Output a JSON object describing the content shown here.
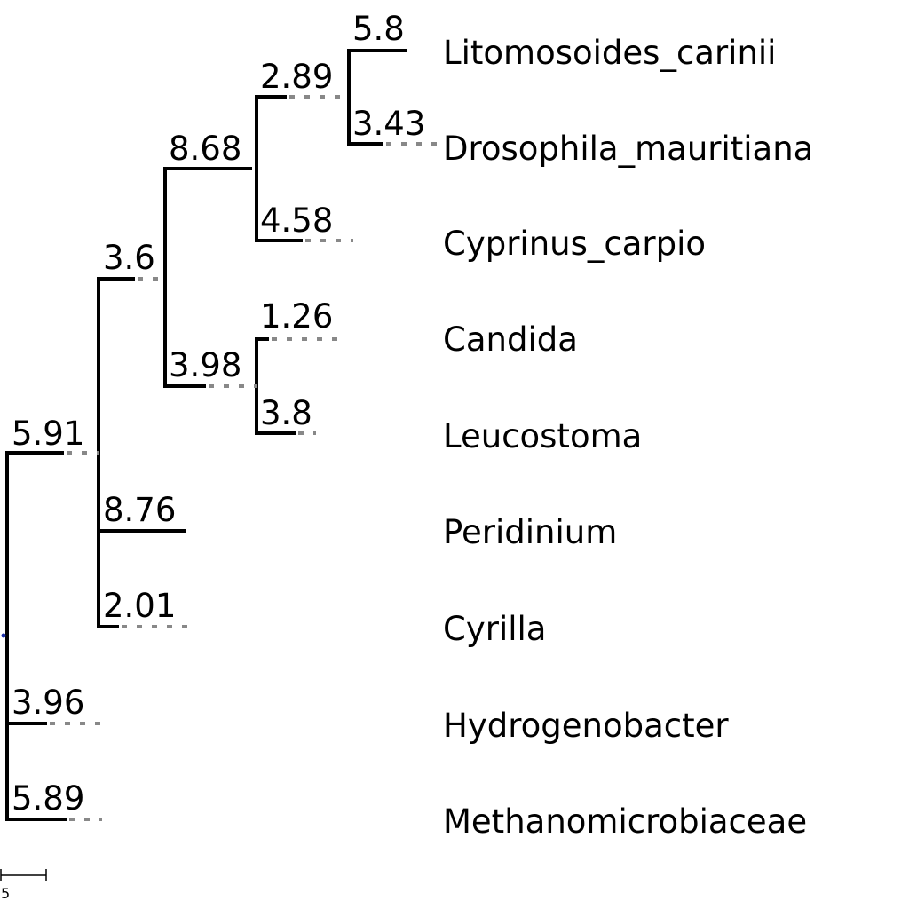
{
  "tree": {
    "root_marker_color": "#1a2ea8",
    "leaves": [
      "Litomosoides_carinii",
      "Drosophila_mauritiana",
      "Cyprinus_carpio",
      "Candida",
      "Leucostoma",
      "Peridinium",
      "Cyrilla",
      "Hydrogenobacter",
      "Methanomicrobiaceae"
    ],
    "branch_lengths": {
      "clade_A": "5.91",
      "clade_B": "3.6",
      "clade_C": "8.68",
      "clade_D": "2.89",
      "litomosoides": "5.8",
      "drosophila": "3.43",
      "cyprinus": "4.58",
      "clade_E": "3.98",
      "candida": "1.26",
      "leucostoma": "3.8",
      "peridinium": "8.76",
      "cyrilla": "2.01",
      "hydrogenobacter": "3.96",
      "methanomicrobiaceae": "5.89"
    },
    "scale_bar": {
      "label": "5",
      "value": 5
    }
  }
}
